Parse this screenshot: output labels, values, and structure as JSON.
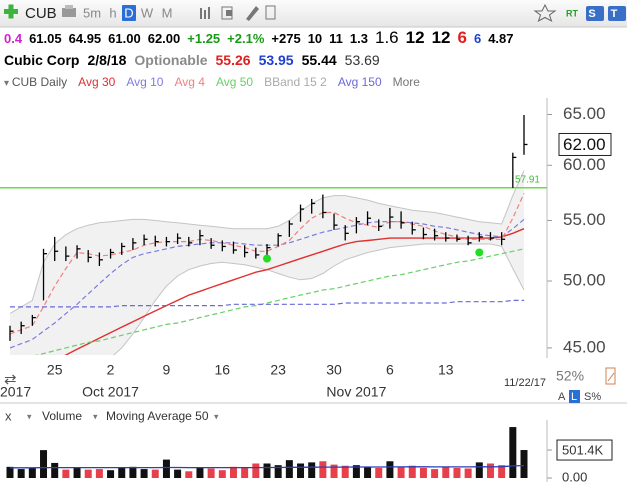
{
  "toolbar": {
    "symbol": "CUB",
    "periods": [
      "5m",
      "h",
      "D",
      "W",
      "M"
    ],
    "active": "D",
    "right": [
      "RT",
      "S",
      "T"
    ]
  },
  "quote_bar": [
    {
      "text": "0.4",
      "color": "#d020d0"
    },
    {
      "text": "61.05",
      "color": "#000000"
    },
    {
      "text": "64.95",
      "color": "#000000"
    },
    {
      "text": "61.00",
      "color": "#000000"
    },
    {
      "text": "62.00",
      "color": "#000000"
    },
    {
      "text": "+1.25",
      "color": "#1a9a1a"
    },
    {
      "text": "+2.1%",
      "color": "#1a9a1a"
    },
    {
      "text": "+275",
      "color": "#000000"
    },
    {
      "text": "10",
      "color": "#000000"
    },
    {
      "text": "11",
      "color": "#000000"
    },
    {
      "text": "1.3",
      "color": "#000000"
    },
    {
      "text": "1.6",
      "color": "#000000"
    },
    {
      "text": "12",
      "color": "#000000"
    },
    {
      "text": "12",
      "color": "#000000"
    },
    {
      "text": "6",
      "color": "#e02020"
    },
    {
      "text": "6",
      "color": "#2040d0"
    },
    {
      "text": "4.87",
      "color": "#000000"
    }
  ],
  "name_bar": [
    {
      "text": "Cubic Corp",
      "color": "#000000"
    },
    {
      "text": "2/8/18",
      "color": "#000000"
    },
    {
      "text": "Optionable",
      "color": "#8a8a8a"
    },
    {
      "text": "55.26",
      "color": "#e02020"
    },
    {
      "text": "53.95",
      "color": "#2040d0"
    },
    {
      "text": "55.44",
      "color": "#000000"
    },
    {
      "text": "53.69",
      "color": "#333333"
    }
  ],
  "scale_controls": {
    "zoom": "52%",
    "buttons": [
      "A",
      "L",
      "S%"
    ]
  },
  "chart_data": [
    {
      "type": "hlc",
      "legend_title": "CUB Daily",
      "legend_more": "More",
      "categories": [
        null,
        null,
        null,
        null,
        "25",
        null,
        null,
        null,
        null,
        "2",
        null,
        null,
        null,
        null,
        "9",
        null,
        null,
        null,
        null,
        "16",
        null,
        null,
        null,
        null,
        "23",
        null,
        null,
        null,
        null,
        "30",
        null,
        null,
        null,
        null,
        "6",
        null,
        null,
        null,
        null,
        "13",
        null,
        null,
        null,
        null,
        null,
        null,
        null
      ],
      "months": [
        "2017",
        null,
        null,
        null,
        null,
        null,
        null,
        null,
        null,
        "Oct 2017",
        null,
        null,
        null,
        null,
        null,
        null,
        null,
        null,
        null,
        null,
        null,
        null,
        null,
        null,
        null,
        null,
        null,
        null,
        null,
        null,
        null,
        "Nov 2017",
        null,
        null,
        null,
        null,
        null,
        null,
        null,
        null,
        null,
        null,
        null,
        null,
        null,
        null,
        null
      ],
      "end_date": "11/22/17",
      "high": [
        46.6,
        46.9,
        47.4,
        52.6,
        53.6,
        52.8,
        52.9,
        52.5,
        52.3,
        52.6,
        53.1,
        53.5,
        53.8,
        53.7,
        53.6,
        53.9,
        53.6,
        54.2,
        53.5,
        53.3,
        53.2,
        52.9,
        52.7,
        53.0,
        53.9,
        55.0,
        56.4,
        56.9,
        57.3,
        55.6,
        54.6,
        55.3,
        55.8,
        55.1,
        56.1,
        55.8,
        54.9,
        54.4,
        54.3,
        54.0,
        53.8,
        53.7,
        54.0,
        54.0,
        54.0,
        61.2,
        64.95
      ],
      "low": [
        45.5,
        46.0,
        46.6,
        48.5,
        51.6,
        51.6,
        51.8,
        51.5,
        51.2,
        51.8,
        52.1,
        52.5,
        52.9,
        52.8,
        52.8,
        53.0,
        52.8,
        52.9,
        52.6,
        52.4,
        52.2,
        51.9,
        51.8,
        52.0,
        52.8,
        53.6,
        54.9,
        55.6,
        55.2,
        54.2,
        53.3,
        53.9,
        54.6,
        54.1,
        54.3,
        54.3,
        53.8,
        53.4,
        53.3,
        53.2,
        53.2,
        52.9,
        53.2,
        53.3,
        52.9,
        57.9,
        61.0
      ],
      "close": [
        46.2,
        46.6,
        47.2,
        52.2,
        52.4,
        52.0,
        52.6,
        51.9,
        51.7,
        52.3,
        52.8,
        53.1,
        53.4,
        53.2,
        53.2,
        53.5,
        53.1,
        53.7,
        52.9,
        52.8,
        52.5,
        52.3,
        52.1,
        52.7,
        53.7,
        54.7,
        56.0,
        56.5,
        55.7,
        54.6,
        53.9,
        54.9,
        55.2,
        54.5,
        55.3,
        54.8,
        54.2,
        53.8,
        53.7,
        53.5,
        53.4,
        53.1,
        53.6,
        53.5,
        53.4,
        60.75,
        62.0
      ],
      "bar_color": "#000000",
      "series": [
        {
          "name": "Avg 30",
          "color": "#e03030",
          "dashed": false,
          "values": [
            42.5,
            42.9,
            43.3,
            43.7,
            44.1,
            44.5,
            44.9,
            45.3,
            45.7,
            46.1,
            46.5,
            46.9,
            47.3,
            47.7,
            48.1,
            48.5,
            48.9,
            49.2,
            49.5,
            49.8,
            50.1,
            50.4,
            50.7,
            50.9,
            51.2,
            51.5,
            51.8,
            52.1,
            52.4,
            52.7,
            53.0,
            53.2,
            53.3,
            53.4,
            53.5,
            53.5,
            53.5,
            53.5,
            53.5,
            53.5,
            53.5,
            53.5,
            53.5,
            53.5,
            53.6,
            53.9,
            54.3
          ]
        },
        {
          "name": "Avg 10",
          "color": "#7c7ce0",
          "dashed": true,
          "values": [
            45.0,
            45.3,
            45.6,
            46.2,
            46.8,
            47.5,
            48.2,
            49.0,
            49.8,
            50.6,
            51.3,
            51.9,
            52.2,
            52.4,
            52.6,
            52.8,
            52.9,
            53.0,
            53.1,
            53.1,
            53.1,
            53.0,
            52.9,
            52.9,
            52.9,
            53.1,
            53.4,
            53.7,
            54.0,
            54.2,
            54.4,
            54.6,
            54.8,
            54.9,
            54.9,
            54.9,
            54.8,
            54.7,
            54.5,
            54.4,
            54.2,
            54.0,
            53.8,
            53.7,
            53.6,
            54.3,
            55.1
          ]
        },
        {
          "name": "Avg 4",
          "color": "#f08080",
          "dashed": true,
          "values": [
            46.0,
            46.3,
            46.6,
            48.0,
            49.6,
            51.0,
            52.3,
            52.2,
            52.0,
            52.1,
            52.3,
            52.5,
            52.9,
            53.1,
            53.2,
            53.2,
            53.2,
            53.4,
            53.3,
            53.1,
            52.9,
            52.7,
            52.4,
            52.4,
            52.8,
            53.3,
            54.3,
            55.2,
            55.7,
            55.7,
            55.2,
            54.8,
            54.6,
            54.4,
            54.9,
            54.9,
            54.7,
            54.5,
            54.1,
            53.8,
            53.6,
            53.4,
            53.4,
            53.4,
            53.4,
            55.2,
            57.4
          ]
        },
        {
          "name": "Avg 50",
          "color": "#66d066",
          "dashed": true,
          "values": [
            44.0,
            44.2,
            44.4,
            44.6,
            44.8,
            45.0,
            45.2,
            45.4,
            45.5,
            45.7,
            45.9,
            46.1,
            46.3,
            46.5,
            46.7,
            46.8,
            47.0,
            47.2,
            47.4,
            47.6,
            47.8,
            48.0,
            48.1,
            48.3,
            48.5,
            48.7,
            48.9,
            49.1,
            49.3,
            49.4,
            49.6,
            49.8,
            50.0,
            50.2,
            50.4,
            50.5,
            50.7,
            50.9,
            51.1,
            51.3,
            51.5,
            51.6,
            51.8,
            52.0,
            52.2,
            52.4,
            52.6
          ]
        },
        {
          "name": "BBand 15 2",
          "color": "#c4c4c4",
          "fill": "#f1f1f1",
          "upper": [
            47.5,
            48.0,
            48.5,
            51.5,
            53.0,
            53.8,
            54.3,
            54.6,
            54.8,
            54.9,
            55.0,
            55.1,
            55.1,
            55.0,
            54.9,
            54.8,
            54.7,
            54.6,
            54.5,
            54.4,
            54.3,
            54.3,
            54.3,
            54.3,
            54.5,
            55.0,
            55.8,
            56.5,
            57.0,
            57.2,
            57.2,
            57.0,
            56.8,
            56.5,
            56.3,
            56.1,
            55.9,
            55.8,
            55.7,
            55.5,
            55.3,
            55.1,
            54.9,
            54.8,
            54.7,
            57.2,
            59.5
          ],
          "lower": [
            43.5,
            43.5,
            43.6,
            43.0,
            42.5,
            42.6,
            42.8,
            43.2,
            43.7,
            44.3,
            45.0,
            46.0,
            47.2,
            48.5,
            49.6,
            50.4,
            50.9,
            51.2,
            51.4,
            51.5,
            51.4,
            51.3,
            51.1,
            50.9,
            50.6,
            50.3,
            50.1,
            50.2,
            50.6,
            51.2,
            51.7,
            52.0,
            52.3,
            52.5,
            52.7,
            52.8,
            52.9,
            53.0,
            53.0,
            53.0,
            53.0,
            53.0,
            53.0,
            53.0,
            52.8,
            51.0,
            49.3
          ]
        },
        {
          "name": "Avg 150",
          "color": "#6a6ad8",
          "dashed": true,
          "values": [
            48.0,
            48.0,
            48.0,
            48.0,
            48.0,
            48.0,
            48.0,
            48.0,
            48.0,
            48.0,
            48.1,
            48.1,
            48.1,
            48.1,
            48.1,
            48.1,
            48.1,
            48.1,
            48.1,
            48.1,
            48.2,
            48.2,
            48.2,
            48.2,
            48.2,
            48.2,
            48.2,
            48.2,
            48.2,
            48.2,
            48.3,
            48.3,
            48.3,
            48.3,
            48.3,
            48.3,
            48.3,
            48.3,
            48.3,
            48.3,
            48.4,
            48.4,
            48.4,
            48.4,
            48.4,
            48.5,
            48.5
          ]
        }
      ],
      "signals": {
        "color": "#22dd22",
        "values": [
          null,
          null,
          null,
          null,
          null,
          null,
          null,
          null,
          null,
          null,
          null,
          null,
          null,
          null,
          null,
          null,
          null,
          null,
          null,
          null,
          null,
          null,
          null,
          51.8,
          null,
          null,
          null,
          null,
          null,
          null,
          null,
          null,
          null,
          null,
          null,
          null,
          null,
          null,
          null,
          null,
          null,
          null,
          52.3,
          null,
          null,
          null,
          null
        ]
      },
      "level": {
        "value": 57.91,
        "color": "#66dd44"
      },
      "last": {
        "value": 62,
        "label": "62.00"
      },
      "log_scale": true,
      "ylim": [
        44.5,
        66.5
      ],
      "yticks": [
        {
          "value": 45,
          "label": "45.00"
        },
        {
          "value": 50,
          "label": "50.00"
        },
        {
          "value": 55,
          "label": "55.00"
        },
        {
          "value": 60,
          "label": "60.00"
        },
        {
          "value": 65,
          "label": "65.00"
        }
      ],
      "grid": false
    },
    {
      "type": "bar",
      "title": "Volume",
      "close_label": "x",
      "values": [
        200000,
        160000,
        180000,
        500000,
        270000,
        150000,
        180000,
        150000,
        160000,
        140000,
        180000,
        200000,
        160000,
        150000,
        330000,
        150000,
        120000,
        180000,
        170000,
        140000,
        200000,
        180000,
        260000,
        260000,
        230000,
        320000,
        260000,
        280000,
        300000,
        240000,
        220000,
        230000,
        200000,
        180000,
        300000,
        200000,
        220000,
        180000,
        160000,
        200000,
        180000,
        170000,
        280000,
        260000,
        230000,
        913000,
        501400
      ],
      "up_color": "#111111",
      "down_color": "#e8404a",
      "series": [
        {
          "name": "Moving Average 50",
          "color": "#2a3fb8",
          "values": [
            182000,
            182000,
            183000,
            186000,
            187000,
            187000,
            187000,
            187000,
            187000,
            186000,
            186000,
            186000,
            186000,
            186000,
            188000,
            188000,
            187000,
            187000,
            187000,
            186000,
            186000,
            186000,
            187000,
            188000,
            189000,
            191000,
            192000,
            193000,
            195000,
            196000,
            196000,
            197000,
            197000,
            197000,
            199000,
            199000,
            200000,
            200000,
            199000,
            199000,
            199000,
            199000,
            200000,
            201000,
            202000,
            216000,
            222000
          ]
        }
      ],
      "ylim": [
        0,
        950000
      ],
      "yticks": [
        {
          "value": 0,
          "label": "0.00"
        },
        {
          "value": 501400,
          "label": "501.4K"
        }
      ]
    }
  ]
}
